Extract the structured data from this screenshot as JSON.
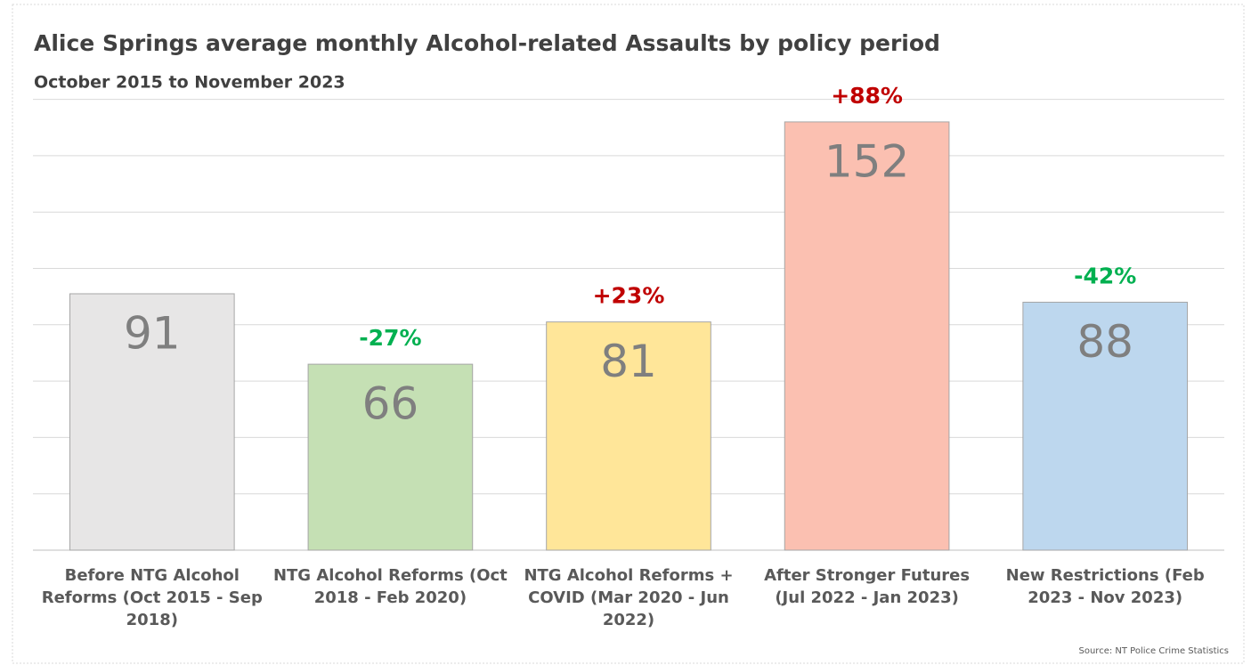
{
  "chart_data": {
    "type": "bar",
    "title": "Alice Springs average monthly Alcohol-related Assaults by policy period",
    "subtitle": "October 2015 to November 2023",
    "categories": [
      "Before NTG Alcohol Reforms (Oct 2015 - Sep 2018)",
      "NTG Alcohol Reforms (Oct 2018 - Feb 2020)",
      "NTG Alcohol Reforms + COVID (Mar 2020 - Jun 2022)",
      "After Stronger Futures (Jul 2022 - Jan 2023)",
      "New Restrictions (Feb 2023 - Nov 2023)"
    ],
    "values": [
      91,
      66,
      81,
      152,
      88
    ],
    "colors": [
      "#e7e6e6",
      "#c5e0b4",
      "#ffe699",
      "#fbc0b1",
      "#bdd7ee"
    ],
    "annotations": [
      null,
      "-27%",
      "+23%",
      "+88%",
      "-42%"
    ],
    "annotation_colors": [
      null,
      "#00b050",
      "#c00000",
      "#c00000",
      "#00b050"
    ],
    "ylim": [
      0,
      160
    ],
    "yticks": [
      0,
      20,
      40,
      60,
      80,
      100,
      120,
      140,
      160
    ],
    "grid": true,
    "source": "Source: NT Police Crime Statistics"
  }
}
